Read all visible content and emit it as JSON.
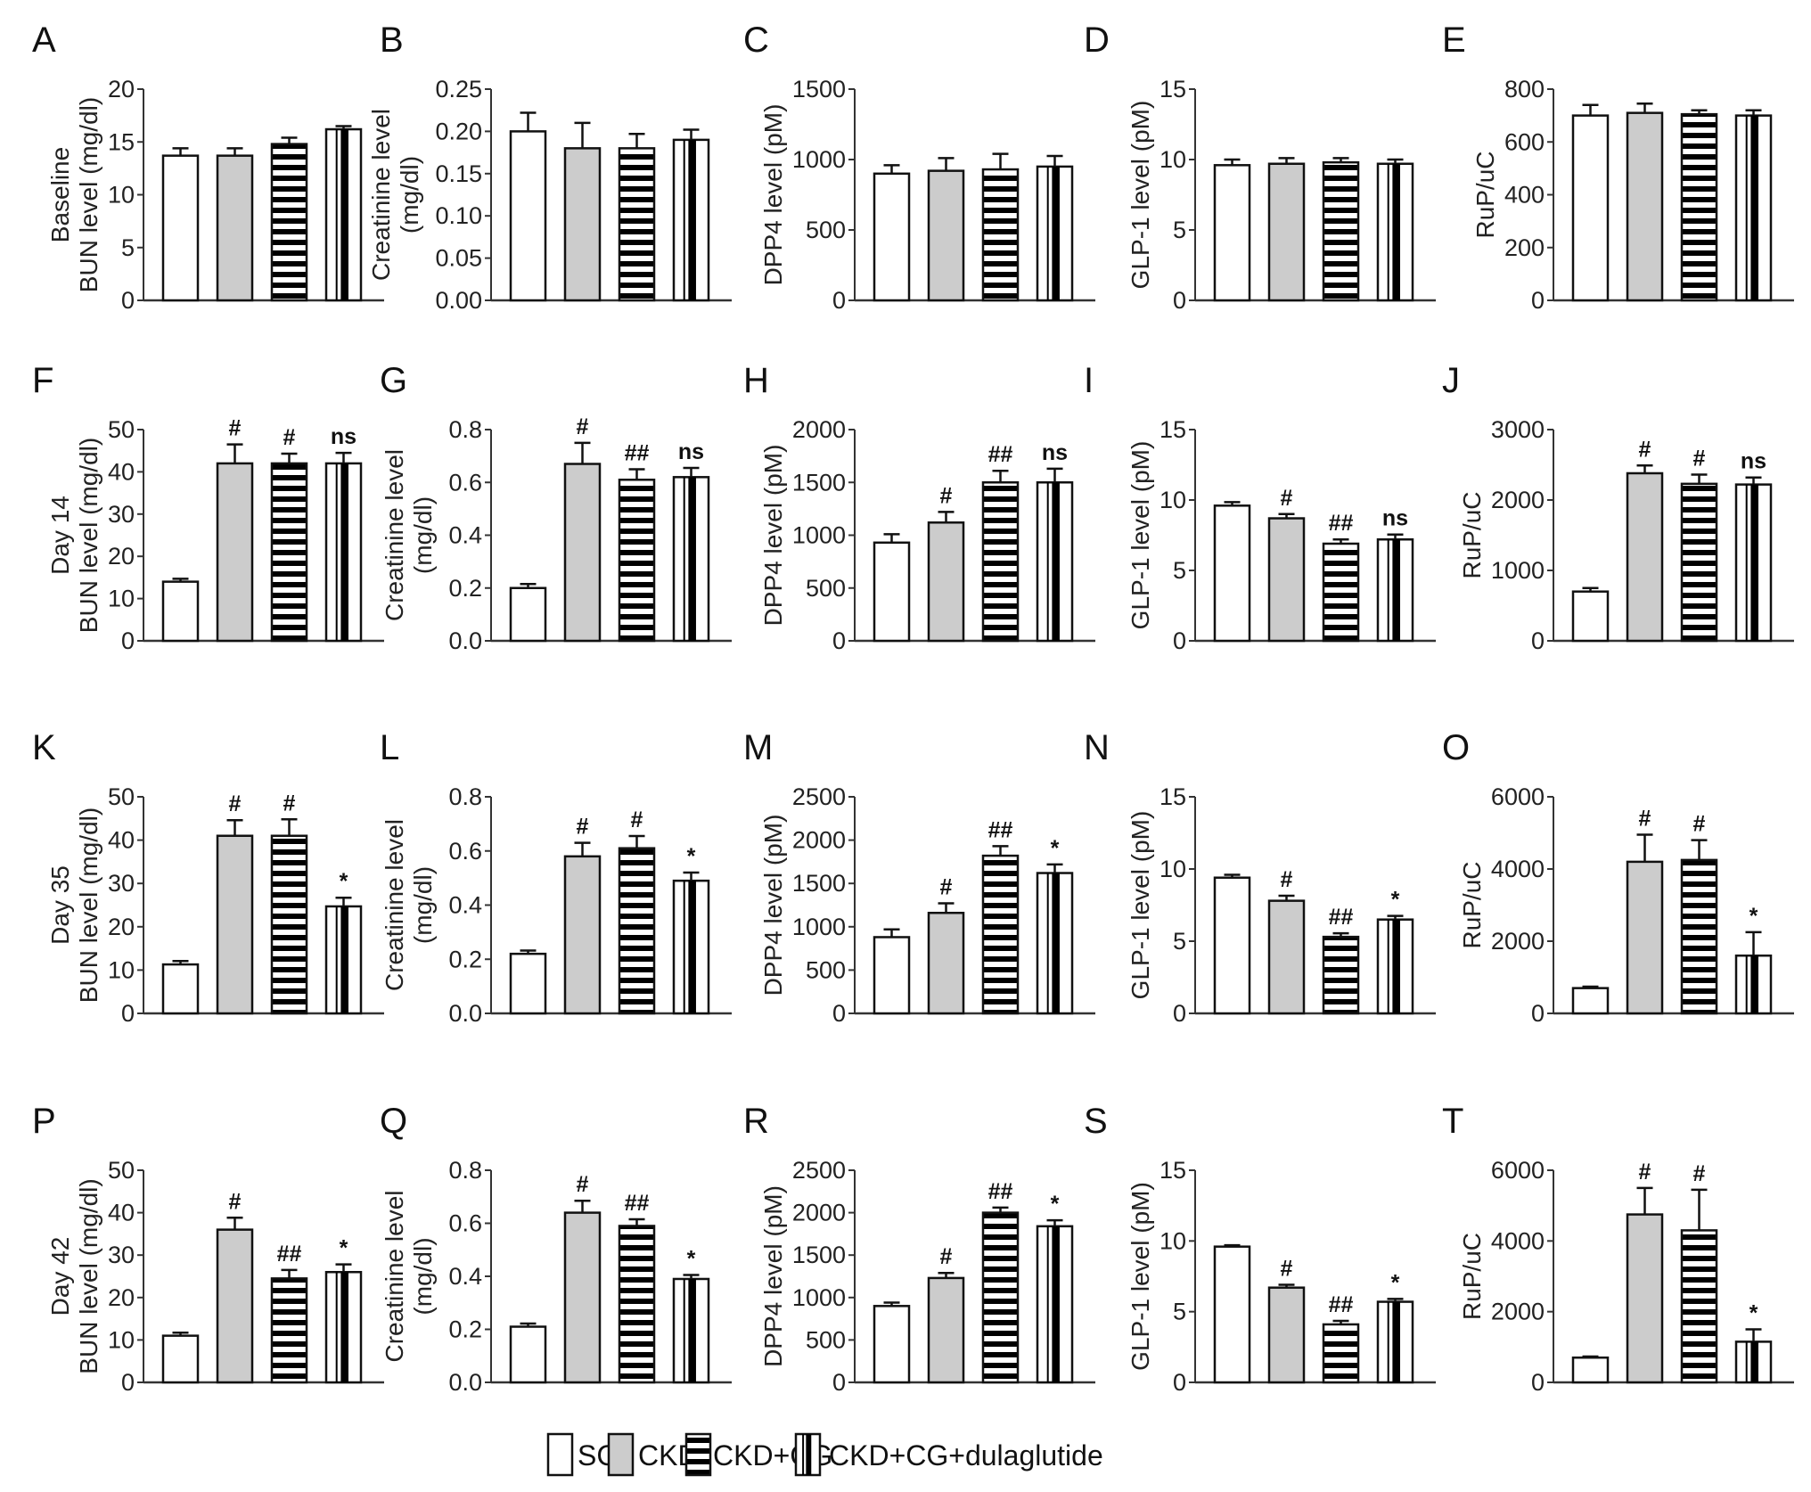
{
  "legend": [
    {
      "name": "SC",
      "fill": "#ffffff",
      "pattern": "none"
    },
    {
      "name": "CKD",
      "fill": "#cccccc",
      "pattern": "none"
    },
    {
      "name": "CKD+CG",
      "fill": "#ffffff",
      "pattern": "horizontal-stripes"
    },
    {
      "name": "CKD+CG+dulaglutide",
      "fill": "#ffffff",
      "pattern": "vertical-stripe"
    }
  ],
  "chart_data": [
    {
      "panel": "A",
      "type": "bar",
      "ylabel": [
        "Baseline",
        "BUN level (mg/dl)"
      ],
      "ylim": [
        0,
        20
      ],
      "ticks": [
        "0",
        "5",
        "10",
        "15",
        "20"
      ],
      "categories": [
        "SC",
        "CKD",
        "CKD+CG",
        "CKD+CG+dulaglutide"
      ],
      "values": [
        13.7,
        13.7,
        14.8,
        16.2
      ],
      "errors": [
        0.7,
        0.7,
        0.6,
        0.3
      ],
      "significance": [
        "",
        "",
        "",
        ""
      ]
    },
    {
      "panel": "B",
      "type": "bar",
      "ylabel": [
        "Creatinine level",
        "(mg/dl)"
      ],
      "ylim": [
        0,
        0.25
      ],
      "ticks": [
        "0.00",
        "0.05",
        "0.10",
        "0.15",
        "0.20",
        "0.25"
      ],
      "categories": [
        "SC",
        "CKD",
        "CKD+CG",
        "CKD+CG+dulaglutide"
      ],
      "values": [
        0.2,
        0.18,
        0.18,
        0.19
      ],
      "errors": [
        0.022,
        0.03,
        0.017,
        0.012
      ],
      "significance": [
        "",
        "",
        "",
        ""
      ]
    },
    {
      "panel": "C",
      "type": "bar",
      "ylabel": [
        "DPP4 level (pM)"
      ],
      "ylim": [
        0,
        1500
      ],
      "ticks": [
        "0",
        "500",
        "1000",
        "1500"
      ],
      "categories": [
        "SC",
        "CKD",
        "CKD+CG",
        "CKD+CG+dulaglutide"
      ],
      "values": [
        900,
        920,
        930,
        950
      ],
      "errors": [
        60,
        90,
        110,
        75
      ],
      "significance": [
        "",
        "",
        "",
        ""
      ]
    },
    {
      "panel": "D",
      "type": "bar",
      "ylabel": [
        "GLP-1 level (pM)"
      ],
      "ylim": [
        0,
        15
      ],
      "ticks": [
        "0",
        "5",
        "10",
        "15"
      ],
      "categories": [
        "SC",
        "CKD",
        "CKD+CG",
        "CKD+CG+dulaglutide"
      ],
      "values": [
        9.6,
        9.7,
        9.8,
        9.7
      ],
      "errors": [
        0.4,
        0.4,
        0.3,
        0.3
      ],
      "significance": [
        "",
        "",
        "",
        ""
      ]
    },
    {
      "panel": "E",
      "type": "bar",
      "ylabel": [
        "RuP/uC"
      ],
      "ylim": [
        0,
        800
      ],
      "ticks": [
        "0",
        "200",
        "400",
        "600",
        "800"
      ],
      "categories": [
        "SC",
        "CKD",
        "CKD+CG",
        "CKD+CG+dulaglutide"
      ],
      "values": [
        700,
        710,
        705,
        700
      ],
      "errors": [
        40,
        35,
        15,
        20
      ],
      "significance": [
        "",
        "",
        "",
        ""
      ]
    },
    {
      "panel": "F",
      "type": "bar",
      "ylabel": [
        "Day 14",
        "BUN level (mg/dl)"
      ],
      "ylim": [
        0,
        50
      ],
      "ticks": [
        "0",
        "10",
        "20",
        "30",
        "40",
        "50"
      ],
      "categories": [
        "SC",
        "CKD",
        "CKD+CG",
        "CKD+CG+dulaglutide"
      ],
      "values": [
        14,
        42,
        42,
        42
      ],
      "errors": [
        0.7,
        4.5,
        2.3,
        2.5
      ],
      "significance": [
        "",
        "#",
        "#",
        "ns"
      ]
    },
    {
      "panel": "G",
      "type": "bar",
      "ylabel": [
        "Creatinine level",
        "(mg/dl)"
      ],
      "ylim": [
        0,
        0.8
      ],
      "ticks": [
        "0.0",
        "0.2",
        "0.4",
        "0.6",
        "0.8"
      ],
      "categories": [
        "SC",
        "CKD",
        "CKD+CG",
        "CKD+CG+dulaglutide"
      ],
      "values": [
        0.2,
        0.67,
        0.61,
        0.62
      ],
      "errors": [
        0.015,
        0.08,
        0.04,
        0.035
      ],
      "significance": [
        "",
        "#",
        "##",
        "ns"
      ]
    },
    {
      "panel": "H",
      "type": "bar",
      "ylabel": [
        "DPP4 level (pM)"
      ],
      "ylim": [
        0,
        2000
      ],
      "ticks": [
        "0",
        "500",
        "1000",
        "1500",
        "2000"
      ],
      "categories": [
        "SC",
        "CKD",
        "CKD+CG",
        "CKD+CG+dulaglutide"
      ],
      "values": [
        930,
        1120,
        1500,
        1500
      ],
      "errors": [
        80,
        100,
        110,
        130
      ],
      "significance": [
        "",
        "#",
        "##",
        "ns"
      ]
    },
    {
      "panel": "I",
      "type": "bar",
      "ylabel": [
        "GLP-1 level (pM)"
      ],
      "ylim": [
        0,
        15
      ],
      "ticks": [
        "0",
        "5",
        "10",
        "15"
      ],
      "categories": [
        "SC",
        "CKD",
        "CKD+CG",
        "CKD+CG+dulaglutide"
      ],
      "values": [
        9.6,
        8.7,
        6.9,
        7.2
      ],
      "errors": [
        0.25,
        0.3,
        0.3,
        0.35
      ],
      "significance": [
        "",
        "#",
        "##",
        "ns"
      ]
    },
    {
      "panel": "J",
      "type": "bar",
      "ylabel": [
        "RuP/uC"
      ],
      "ylim": [
        0,
        3000
      ],
      "ticks": [
        "0",
        "1000",
        "2000",
        "3000"
      ],
      "categories": [
        "SC",
        "CKD",
        "CKD+CG",
        "CKD+CG+dulaglutide"
      ],
      "values": [
        700,
        2380,
        2230,
        2220
      ],
      "errors": [
        50,
        110,
        130,
        100
      ],
      "significance": [
        "",
        "#",
        "#",
        "ns"
      ]
    },
    {
      "panel": "K",
      "type": "bar",
      "ylabel": [
        "Day 35",
        "BUN level (mg/dl)"
      ],
      "ylim": [
        0,
        50
      ],
      "ticks": [
        "0",
        "10",
        "20",
        "30",
        "40",
        "50"
      ],
      "categories": [
        "SC",
        "CKD",
        "CKD+CG",
        "CKD+CG+dulaglutide"
      ],
      "values": [
        11.3,
        41,
        41,
        24.7
      ],
      "errors": [
        0.8,
        3.6,
        3.8,
        2
      ],
      "significance": [
        "",
        "#",
        "#",
        "*"
      ]
    },
    {
      "panel": "L",
      "type": "bar",
      "ylabel": [
        "Creatinine level",
        "(mg/dl)"
      ],
      "ylim": [
        0,
        0.8
      ],
      "ticks": [
        "0.0",
        "0.2",
        "0.4",
        "0.6",
        "0.8"
      ],
      "categories": [
        "SC",
        "CKD",
        "CKD+CG",
        "CKD+CG+dulaglutide"
      ],
      "values": [
        0.22,
        0.58,
        0.61,
        0.49
      ],
      "errors": [
        0.012,
        0.05,
        0.045,
        0.03
      ],
      "significance": [
        "",
        "#",
        "#",
        "*"
      ]
    },
    {
      "panel": "M",
      "type": "bar",
      "ylabel": [
        "DPP4 level (pM)"
      ],
      "ylim": [
        0,
        2500
      ],
      "ticks": [
        "0",
        "500",
        "1000",
        "1500",
        "2000",
        "2500"
      ],
      "categories": [
        "SC",
        "CKD",
        "CKD+CG",
        "CKD+CG+dulaglutide"
      ],
      "values": [
        880,
        1160,
        1820,
        1620
      ],
      "errors": [
        90,
        110,
        110,
        100
      ],
      "significance": [
        "",
        "#",
        "##",
        "*"
      ]
    },
    {
      "panel": "N",
      "type": "bar",
      "ylabel": [
        "GLP-1 level (pM)"
      ],
      "ylim": [
        0,
        15
      ],
      "ticks": [
        "0",
        "5",
        "10",
        "15"
      ],
      "categories": [
        "SC",
        "CKD",
        "CKD+CG",
        "CKD+CG+dulaglutide"
      ],
      "values": [
        9.4,
        7.8,
        5.3,
        6.5
      ],
      "errors": [
        0.2,
        0.35,
        0.25,
        0.25
      ],
      "significance": [
        "",
        "#",
        "##",
        "*"
      ]
    },
    {
      "panel": "O",
      "type": "bar",
      "ylabel": [
        "RuP/uC"
      ],
      "ylim": [
        0,
        6000
      ],
      "ticks": [
        "0",
        "2000",
        "4000",
        "6000"
      ],
      "categories": [
        "SC",
        "CKD",
        "CKD+CG",
        "CKD+CG+dulaglutide"
      ],
      "values": [
        700,
        4200,
        4250,
        1600
      ],
      "errors": [
        40,
        750,
        550,
        650
      ],
      "significance": [
        "",
        "#",
        "#",
        "*"
      ]
    },
    {
      "panel": "P",
      "type": "bar",
      "ylabel": [
        "Day 42",
        "BUN level (mg/dl)"
      ],
      "ylim": [
        0,
        50
      ],
      "ticks": [
        "0",
        "10",
        "20",
        "30",
        "40",
        "50"
      ],
      "categories": [
        "SC",
        "CKD",
        "CKD+CG",
        "CKD+CG+dulaglutide"
      ],
      "values": [
        11,
        36,
        24.5,
        26
      ],
      "errors": [
        0.7,
        2.8,
        2,
        1.8
      ],
      "significance": [
        "",
        "#",
        "##",
        "*"
      ]
    },
    {
      "panel": "Q",
      "type": "bar",
      "ylabel": [
        "Creatinine level",
        "(mg/dl)"
      ],
      "ylim": [
        0,
        0.8
      ],
      "ticks": [
        "0.0",
        "0.2",
        "0.4",
        "0.6",
        "0.8"
      ],
      "categories": [
        "SC",
        "CKD",
        "CKD+CG",
        "CKD+CG+dulaglutide"
      ],
      "values": [
        0.21,
        0.64,
        0.59,
        0.39
      ],
      "errors": [
        0.012,
        0.045,
        0.025,
        0.015
      ],
      "significance": [
        "",
        "#",
        "##",
        "*"
      ]
    },
    {
      "panel": "R",
      "type": "bar",
      "ylabel": [
        "DPP4 level (pM)"
      ],
      "ylim": [
        0,
        2500
      ],
      "ticks": [
        "0",
        "500",
        "1000",
        "1500",
        "2000",
        "2500"
      ],
      "categories": [
        "SC",
        "CKD",
        "CKD+CG",
        "CKD+CG+dulaglutide"
      ],
      "values": [
        900,
        1230,
        2000,
        1840
      ],
      "errors": [
        40,
        60,
        60,
        70
      ],
      "significance": [
        "",
        "#",
        "##",
        "*"
      ]
    },
    {
      "panel": "S",
      "type": "bar",
      "ylabel": [
        "GLP-1 level (pM)"
      ],
      "ylim": [
        0,
        15
      ],
      "ticks": [
        "0",
        "5",
        "10",
        "15"
      ],
      "categories": [
        "SC",
        "CKD",
        "CKD+CG",
        "CKD+CG+dulaglutide"
      ],
      "values": [
        9.6,
        6.7,
        4.1,
        5.7
      ],
      "errors": [
        0.1,
        0.2,
        0.25,
        0.2
      ],
      "significance": [
        "",
        "#",
        "##",
        "*"
      ]
    },
    {
      "panel": "T",
      "type": "bar",
      "ylabel": [
        "RuP/uC"
      ],
      "ylim": [
        0,
        6000
      ],
      "ticks": [
        "0",
        "2000",
        "4000",
        "6000"
      ],
      "categories": [
        "SC",
        "CKD",
        "CKD+CG",
        "CKD+CG+dulaglutide"
      ],
      "values": [
        700,
        4750,
        4300,
        1150
      ],
      "errors": [
        30,
        750,
        1150,
        350
      ],
      "significance": [
        "",
        "#",
        "#",
        "*"
      ]
    }
  ]
}
